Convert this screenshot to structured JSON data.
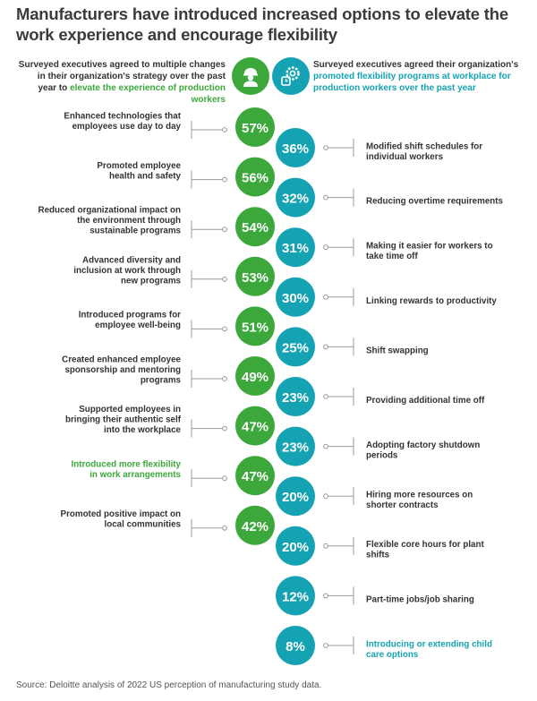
{
  "title": "Manufacturers have introduced increased options to elevate the work experience and encourage flexibility",
  "header_left": {
    "text": "Surveyed executives agreed to multiple changes in their organization's strategy over the past year to",
    "highlight": "elevate the experience of production workers"
  },
  "header_right": {
    "text": "Surveyed executives agreed their organization's",
    "highlight": "promoted flexibility programs at workplace for production workers over the past year"
  },
  "icons": {
    "left": "worker-icon",
    "right": "gear-clock-icon"
  },
  "colors": {
    "green": "#3ca83c",
    "teal": "#15a3b4",
    "highlight_green": "#3ca83c",
    "highlight_teal": "#15a3b4"
  },
  "chart_data": [
    {
      "type": "bar",
      "categories": [
        "Enhanced technologies that employees use day to day",
        "Promoted employee health and safety",
        "Reduced organizational impact on the environment through sustainable programs",
        "Advanced diversity and inclusion at work through new programs",
        "Introduced programs for employee well-being",
        "Created enhanced employee sponsorship and mentoring programs",
        "Supported employees in bringing their authentic self into the workplace",
        "Introduced more flexibility in work arrangements",
        "Promoted positive impact on local communities"
      ],
      "values": [
        57,
        56,
        54,
        53,
        51,
        49,
        47,
        47,
        42
      ],
      "value_labels": [
        "57%",
        "56%",
        "54%",
        "53%",
        "51%",
        "49%",
        "47%",
        "47%",
        "42%"
      ],
      "highlighted": [
        false,
        false,
        false,
        false,
        false,
        false,
        false,
        true,
        false
      ]
    },
    {
      "type": "bar",
      "categories": [
        "Modified shift schedules for individual workers",
        "Reducing overtime requirements",
        "Making it easier for workers to take time off",
        "Linking rewards to productivity",
        "Shift swapping",
        "Providing additional time off",
        "Adopting factory shutdown periods",
        "Hiring more resources on shorter contracts",
        "Flexible core hours for plant shifts",
        "Part-time jobs/job sharing",
        "Introducing or extending child care options"
      ],
      "values": [
        36,
        32,
        31,
        30,
        25,
        23,
        23,
        20,
        20,
        12,
        8
      ],
      "value_labels": [
        "36%",
        "32%",
        "31%",
        "30%",
        "25%",
        "23%",
        "23%",
        "20%",
        "20%",
        "12%",
        "8%"
      ],
      "highlighted": [
        false,
        false,
        false,
        false,
        false,
        false,
        false,
        false,
        false,
        false,
        true
      ]
    }
  ],
  "left_label_lines": [
    [
      "Enhanced technologies that",
      "employees use day to day"
    ],
    [
      "Promoted employee",
      "health and safety"
    ],
    [
      "Reduced organizational impact on",
      "the environment through",
      "sustainable programs"
    ],
    [
      "Advanced diversity and",
      "inclusion at work through",
      "new programs"
    ],
    [
      "Introduced programs for",
      "employee well-being"
    ],
    [
      "Created enhanced employee",
      "sponsorship and mentoring",
      "programs"
    ],
    [
      "Supported employees in",
      "bringing their authentic self",
      "into the workplace"
    ],
    [
      "Introduced more flexibility",
      "in work arrangements"
    ],
    [
      "Promoted positive impact on",
      "local communities"
    ]
  ],
  "right_label_lines": [
    [
      "Modified shift schedules for",
      "individual workers"
    ],
    [
      "Reducing overtime requirements"
    ],
    [
      "Making it easier for workers to",
      "take time off"
    ],
    [
      "Linking rewards to productivity"
    ],
    [
      "Shift swapping"
    ],
    [
      "Providing additional time off"
    ],
    [
      "Adopting factory shutdown",
      "periods"
    ],
    [
      "Hiring more resources on",
      "shorter contracts"
    ],
    [
      "Flexible core hours for plant",
      "shifts"
    ],
    [
      "Part-time jobs/job sharing"
    ],
    [
      "Introducing or extending child",
      "care options"
    ]
  ],
  "source": "Source: Deloitte analysis of 2022 US perception of manufacturing study data."
}
